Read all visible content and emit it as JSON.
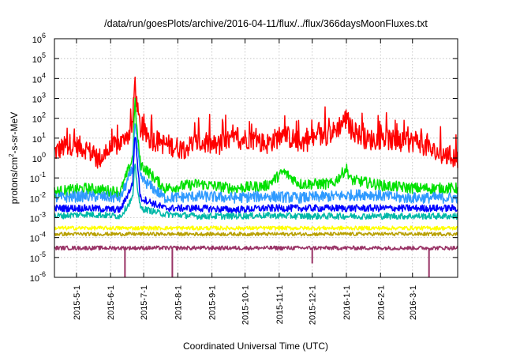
{
  "chart_data": {
    "type": "line",
    "title": "/data/run/goesPlots/archive/2016-04-11/flux/../flux/366daysMoonFluxes.txt",
    "xlabel": "Coordinated Universal Time (UTC)",
    "ylabel_parts": [
      "protons/cm",
      "2",
      "-s-sr-MeV"
    ],
    "yscale": "log",
    "ylim": [
      1e-06,
      1000000.0
    ],
    "xlim": [
      "2015-04-11",
      "2016-04-11"
    ],
    "grid": true,
    "y_ticks": [
      {
        "value": 1e-06,
        "base": "10",
        "exp": "-6"
      },
      {
        "value": 1e-05,
        "base": "10",
        "exp": "-5"
      },
      {
        "value": 0.0001,
        "base": "10",
        "exp": "-4"
      },
      {
        "value": 0.001,
        "base": "10",
        "exp": "-3"
      },
      {
        "value": 0.01,
        "base": "10",
        "exp": "-2"
      },
      {
        "value": 0.1,
        "base": "10",
        "exp": "-1"
      },
      {
        "value": 1,
        "base": "10",
        "exp": "0"
      },
      {
        "value": 10.0,
        "base": "10",
        "exp": "1"
      },
      {
        "value": 100.0,
        "base": "10",
        "exp": "2"
      },
      {
        "value": 1000.0,
        "base": "10",
        "exp": "3"
      },
      {
        "value": 10000.0,
        "base": "10",
        "exp": "4"
      },
      {
        "value": 100000.0,
        "base": "10",
        "exp": "5"
      },
      {
        "value": 1000000.0,
        "base": "10",
        "exp": "6"
      }
    ],
    "x_ticks": [
      "2015-5-1",
      "2015-6-1",
      "2015-7-1",
      "2015-8-1",
      "2015-9-1",
      "2015-10-1",
      "2015-11-1",
      "2015-12-1",
      "2016-1-1",
      "2016-2-1",
      "2016-3-1"
    ],
    "x_tick_dates": [
      "2015-05-01",
      "2015-06-01",
      "2015-07-01",
      "2015-08-01",
      "2015-09-01",
      "2015-10-01",
      "2015-11-01",
      "2015-12-01",
      "2016-01-01",
      "2016-02-01",
      "2016-03-01"
    ],
    "series": [
      {
        "color": "#ff0000",
        "x": [
          "2015-04-11",
          "2015-04-25",
          "2015-05-10",
          "2015-05-20",
          "2015-06-05",
          "2015-06-15",
          "2015-06-21",
          "2015-06-23",
          "2015-06-25",
          "2015-06-28",
          "2015-07-05",
          "2015-07-20",
          "2015-08-05",
          "2015-08-20",
          "2015-09-05",
          "2015-09-20",
          "2015-10-05",
          "2015-10-20",
          "2015-11-05",
          "2015-11-20",
          "2015-12-05",
          "2015-12-20",
          "2016-01-01",
          "2016-01-05",
          "2016-01-20",
          "2016-02-05",
          "2016-02-20",
          "2016-03-05",
          "2016-03-20",
          "2016-04-11"
        ],
        "y": [
          2,
          5,
          3,
          0.8,
          4,
          8,
          50,
          10000,
          300,
          30,
          10,
          5,
          3,
          6,
          4,
          8,
          10,
          5,
          15,
          6,
          10,
          20,
          100,
          30,
          8,
          10,
          5,
          8,
          2,
          1
        ]
      },
      {
        "color": "#00e000",
        "x": [
          "2015-04-11",
          "2015-05-10",
          "2015-06-10",
          "2015-06-21",
          "2015-06-23",
          "2015-06-25",
          "2015-06-28",
          "2015-07-20",
          "2015-08-20",
          "2015-09-20",
          "2015-10-20",
          "2015-11-05",
          "2015-11-20",
          "2015-12-20",
          "2016-01-01",
          "2016-01-05",
          "2016-02-05",
          "2016-03-05",
          "2016-04-11"
        ],
        "y": [
          0.02,
          0.03,
          0.02,
          1,
          800,
          20,
          0.5,
          0.03,
          0.05,
          0.03,
          0.04,
          0.2,
          0.05,
          0.05,
          0.3,
          0.08,
          0.04,
          0.03,
          0.03
        ]
      },
      {
        "color": "#2f9aff",
        "x": [
          "2015-04-11",
          "2015-05-10",
          "2015-06-10",
          "2015-06-21",
          "2015-06-23",
          "2015-06-25",
          "2015-06-28",
          "2015-07-20",
          "2015-08-20",
          "2015-09-20",
          "2015-10-20",
          "2015-11-20",
          "2015-12-20",
          "2016-01-20",
          "2016-02-20",
          "2016-03-20",
          "2016-04-11"
        ],
        "y": [
          0.01,
          0.012,
          0.01,
          0.3,
          100,
          5,
          0.1,
          0.01,
          0.012,
          0.01,
          0.012,
          0.01,
          0.012,
          0.015,
          0.01,
          0.01,
          0.01
        ]
      },
      {
        "color": "#0000ff",
        "x": [
          "2015-04-11",
          "2015-05-10",
          "2015-06-10",
          "2015-06-21",
          "2015-06-23",
          "2015-06-25",
          "2015-06-28",
          "2015-07-20",
          "2015-08-20",
          "2015-09-20",
          "2015-10-20",
          "2015-11-20",
          "2015-12-20",
          "2016-01-20",
          "2016-02-20",
          "2016-03-20",
          "2016-04-11"
        ],
        "y": [
          0.003,
          0.003,
          0.0025,
          0.05,
          20,
          1,
          0.01,
          0.003,
          0.003,
          0.0025,
          0.003,
          0.003,
          0.003,
          0.003,
          0.003,
          0.003,
          0.003
        ]
      },
      {
        "color": "#00b8a8",
        "x": [
          "2015-04-11",
          "2015-05-10",
          "2015-06-10",
          "2015-06-21",
          "2015-06-23",
          "2015-06-25",
          "2015-06-28",
          "2015-07-20",
          "2015-08-20",
          "2015-09-20",
          "2015-10-20",
          "2015-11-20",
          "2015-12-20",
          "2016-01-20",
          "2016-02-20",
          "2016-03-20",
          "2016-04-11"
        ],
        "y": [
          0.0012,
          0.0015,
          0.0012,
          0.01,
          0.5,
          0.05,
          0.003,
          0.0015,
          0.0012,
          0.0012,
          0.0013,
          0.0012,
          0.0012,
          0.0012,
          0.0012,
          0.0012,
          0.0012
        ]
      },
      {
        "color": "#ffff00",
        "x": [
          "2015-04-11",
          "2015-06-01",
          "2015-08-01",
          "2015-10-01",
          "2015-12-01",
          "2016-02-01",
          "2016-04-11"
        ],
        "y": [
          0.0003,
          0.0003,
          0.0003,
          0.0003,
          0.0003,
          0.0003,
          0.0003
        ]
      },
      {
        "color": "#b8a000",
        "x": [
          "2015-04-11",
          "2015-06-01",
          "2015-08-01",
          "2015-10-01",
          "2015-12-01",
          "2016-02-01",
          "2016-04-11"
        ],
        "y": [
          0.00015,
          0.00015,
          0.00015,
          0.00015,
          0.00015,
          0.00015,
          0.00015
        ]
      },
      {
        "color": "#993366",
        "x": [
          "2015-04-11",
          "2015-06-01",
          "2015-08-01",
          "2015-10-01",
          "2015-12-01",
          "2016-02-01",
          "2016-04-11"
        ],
        "y": [
          3e-05,
          3e-05,
          3e-05,
          3e-05,
          3e-05,
          3e-05,
          3e-05
        ]
      }
    ],
    "dips": [
      {
        "x": "2015-06-14",
        "y": 1e-06
      },
      {
        "x": "2015-07-27",
        "y": 1e-06
      },
      {
        "x": "2015-12-01",
        "y": 5e-06
      },
      {
        "x": "2016-03-16",
        "y": 1e-06
      }
    ]
  }
}
